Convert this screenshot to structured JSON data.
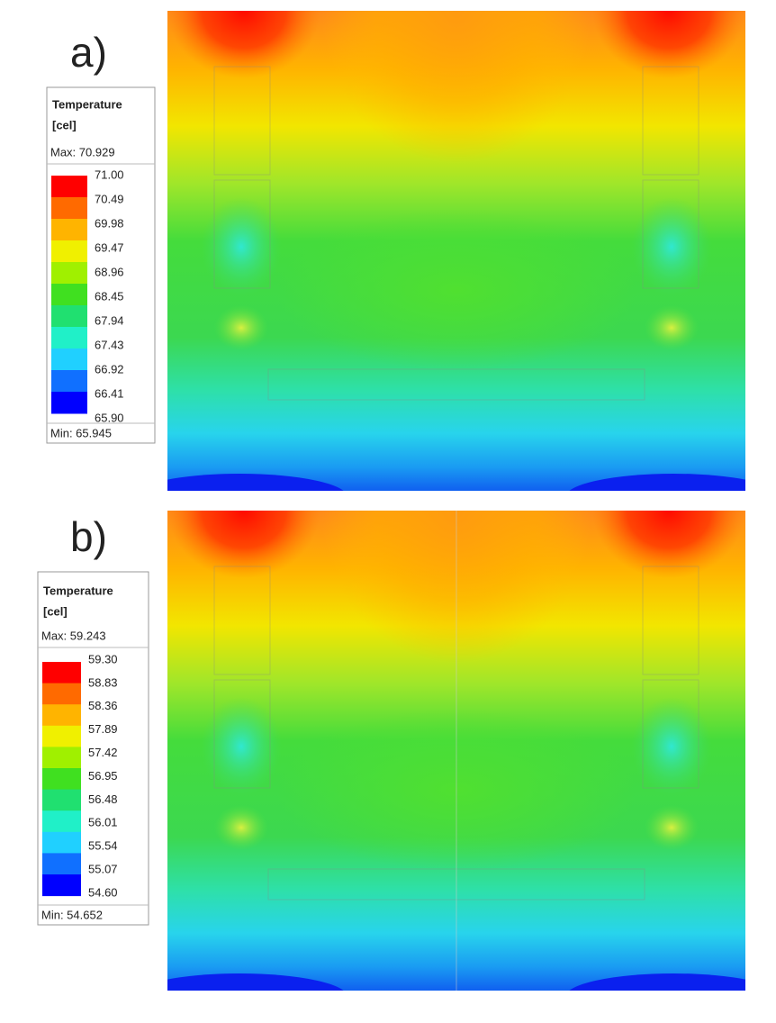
{
  "panels": [
    {
      "label": "a)",
      "legend": {
        "title": "Temperature",
        "unit": "[cel]",
        "max": "Max: 70.929",
        "min": "Min: 65.945",
        "levels": [
          "71.00",
          "70.49",
          "69.98",
          "69.47",
          "68.96",
          "68.45",
          "67.94",
          "67.43",
          "66.92",
          "66.41",
          "65.90"
        ]
      }
    },
    {
      "label": "b)",
      "legend": {
        "title": "Temperature",
        "unit": "[cel]",
        "max": "Max: 59.243",
        "min": "Min: 54.652",
        "levels": [
          "59.30",
          "58.83",
          "58.36",
          "57.89",
          "57.42",
          "56.95",
          "56.48",
          "56.01",
          "55.54",
          "55.07",
          "54.60"
        ]
      }
    }
  ],
  "legend_colors": [
    "#ff0000",
    "#ff6a00",
    "#ffb400",
    "#f0f000",
    "#a0f000",
    "#40e020",
    "#20e070",
    "#20f0c8",
    "#20d0ff",
    "#1070ff",
    "#0000ff"
  ]
}
